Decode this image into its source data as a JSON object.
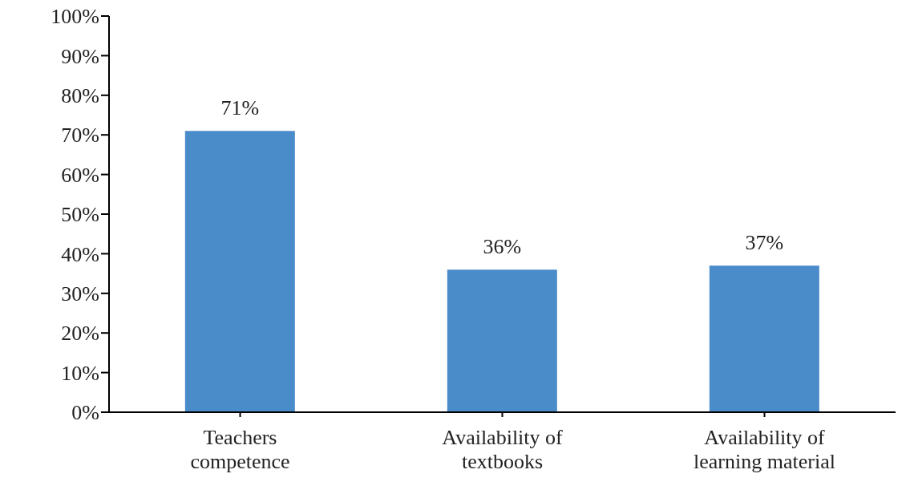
{
  "chart_data": {
    "type": "bar",
    "categories": [
      "Teachers competence",
      "Availability of textbooks",
      "Availability of learning material"
    ],
    "values": [
      71,
      36,
      37
    ],
    "value_labels": [
      "71%",
      "36%",
      "37%"
    ],
    "color": "#4a8bca",
    "ylim": [
      0,
      100
    ],
    "yticks": [
      {
        "value": 0,
        "label": "0%"
      },
      {
        "value": 10,
        "label": "10%"
      },
      {
        "value": 20,
        "label": "20%"
      },
      {
        "value": 30,
        "label": "30%"
      },
      {
        "value": 40,
        "label": "40%"
      },
      {
        "value": 50,
        "label": "50%"
      },
      {
        "value": 60,
        "label": "60%"
      },
      {
        "value": 70,
        "label": "70%"
      },
      {
        "value": 80,
        "label": "80%"
      },
      {
        "value": 90,
        "label": "90%"
      },
      {
        "value": 100,
        "label": "100%"
      }
    ],
    "grid": false,
    "legend": false
  }
}
